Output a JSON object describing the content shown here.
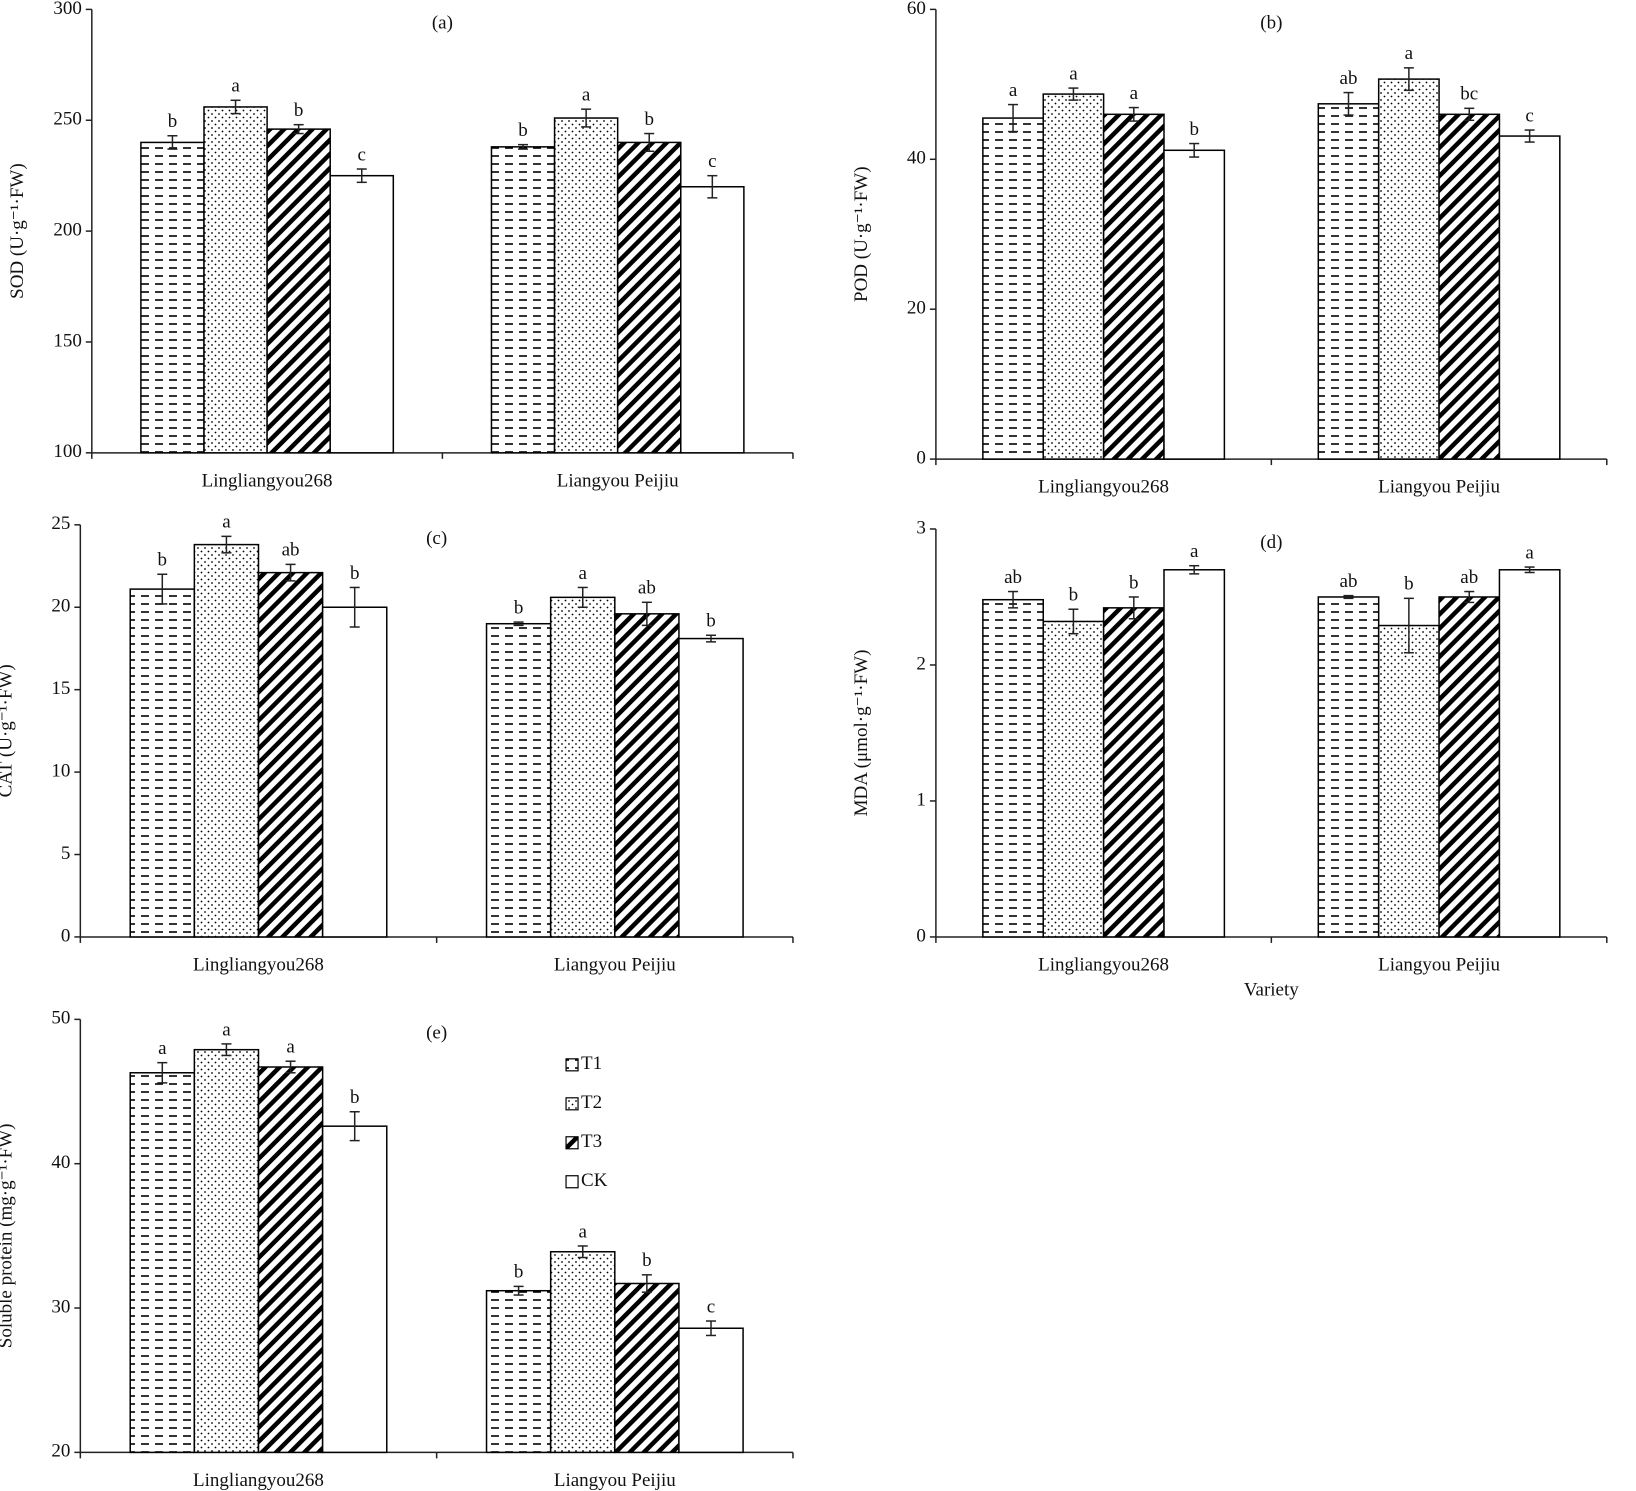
{
  "chart_data": [
    {
      "type": "bar",
      "title": "(a)",
      "y_label": "SOD (U·g⁻¹·FW)",
      "ylim": [
        100,
        300
      ],
      "yticks": [
        100,
        150,
        200,
        250,
        300
      ],
      "categories": [
        "Lingliangyou268",
        "Liangyou Peijiu"
      ],
      "series": [
        {
          "pattern": "dashes",
          "color": "#000000",
          "values": [
            240,
            238
          ],
          "errors": [
            3,
            1
          ],
          "letters": [
            "b",
            "b"
          ]
        },
        {
          "pattern": "dots",
          "color": "#000000",
          "values": [
            256,
            251
          ],
          "errors": [
            3,
            4
          ],
          "letters": [
            "a",
            "a"
          ]
        },
        {
          "pattern": "diagonal",
          "color": "#000000",
          "values": [
            246,
            240
          ],
          "errors": [
            2,
            4
          ],
          "letters": [
            "b",
            "b"
          ]
        },
        {
          "pattern": "none",
          "color": "#000000",
          "values": [
            225,
            220
          ],
          "errors": [
            3,
            5
          ],
          "letters": [
            "c",
            "c"
          ]
        }
      ]
    },
    {
      "type": "bar",
      "title": "(b)",
      "y_label": "POD (U·g⁻¹·FW)",
      "ylim": [
        0,
        60
      ],
      "yticks": [
        0,
        20,
        40,
        60
      ],
      "categories": [
        "Lingliangyou268",
        "Liangyou Peijiu"
      ],
      "series": [
        {
          "pattern": "dashes",
          "color": "#000000",
          "values": [
            45.5,
            47.4
          ],
          "errors": [
            1.8,
            1.5
          ],
          "letters": [
            "a",
            "ab"
          ]
        },
        {
          "pattern": "dots",
          "color": "#000000",
          "values": [
            48.7,
            50.7
          ],
          "errors": [
            0.8,
            1.5
          ],
          "letters": [
            "a",
            "a"
          ]
        },
        {
          "pattern": "diagonal",
          "color": "#000000",
          "values": [
            46,
            46
          ],
          "errors": [
            0.9,
            0.8
          ],
          "letters": [
            "a",
            "bc"
          ]
        },
        {
          "pattern": "none",
          "color": "#000000",
          "values": [
            41.2,
            43.1
          ],
          "errors": [
            0.9,
            0.8
          ],
          "letters": [
            "b",
            "c"
          ]
        }
      ]
    },
    {
      "type": "bar",
      "title": "(c)",
      "y_label": "CAT (U·g⁻¹·FW)",
      "ylim": [
        0,
        25
      ],
      "yticks": [
        0,
        5,
        10,
        15,
        20,
        25
      ],
      "categories": [
        "Lingliangyou268",
        "Liangyou Peijiu"
      ],
      "series": [
        {
          "pattern": "dashes",
          "color": "#000000",
          "values": [
            21.1,
            19
          ],
          "errors": [
            0.9,
            0.1
          ],
          "letters": [
            "b",
            "b"
          ]
        },
        {
          "pattern": "dots",
          "color": "#000000",
          "values": [
            23.8,
            20.6
          ],
          "errors": [
            0.5,
            0.6
          ],
          "letters": [
            "a",
            "a"
          ]
        },
        {
          "pattern": "diagonal",
          "color": "#000000",
          "values": [
            22.1,
            19.6
          ],
          "errors": [
            0.5,
            0.7
          ],
          "letters": [
            "ab",
            "ab"
          ]
        },
        {
          "pattern": "none",
          "color": "#000000",
          "values": [
            20,
            18.1
          ],
          "errors": [
            1.2,
            0.2
          ],
          "letters": [
            "b",
            "b"
          ]
        }
      ]
    },
    {
      "type": "bar",
      "title": "(d)",
      "y_label": "MDA  (μmol·g⁻¹·FW)",
      "x_label": "Variety",
      "ylim": [
        0,
        3
      ],
      "yticks": [
        0,
        1,
        2,
        3
      ],
      "categories": [
        "Lingliangyou268",
        "Liangyou Peijiu"
      ],
      "series": [
        {
          "pattern": "dashes",
          "color": "#000000",
          "values": [
            2.48,
            2.5
          ],
          "errors": [
            0.06,
            0.01
          ],
          "letters": [
            "ab",
            "ab"
          ]
        },
        {
          "pattern": "dots",
          "color": "#000000",
          "values": [
            2.32,
            2.29
          ],
          "errors": [
            0.09,
            0.2
          ],
          "letters": [
            "b",
            "b"
          ]
        },
        {
          "pattern": "diagonal",
          "color": "#000000",
          "values": [
            2.42,
            2.5
          ],
          "errors": [
            0.08,
            0.04
          ],
          "letters": [
            "b",
            "ab"
          ]
        },
        {
          "pattern": "none",
          "color": "#000000",
          "values": [
            2.7,
            2.7
          ],
          "errors": [
            0.03,
            0.02
          ],
          "letters": [
            "a",
            "a"
          ]
        }
      ]
    },
    {
      "type": "bar",
      "title": "(e)",
      "y_label": "Soluble protein (mg·g⁻¹·FW)",
      "ylim": [
        20,
        50
      ],
      "yticks": [
        20,
        30,
        40,
        50
      ],
      "categories": [
        "Lingliangyou268",
        "Liangyou Peijiu"
      ],
      "legend": "upper center",
      "series": [
        {
          "name": "T1",
          "pattern": "dashes",
          "color": "#000000",
          "values": [
            46.3,
            31.2
          ],
          "errors": [
            0.7,
            0.3
          ],
          "letters": [
            "a",
            "b"
          ]
        },
        {
          "name": "T2",
          "pattern": "dots",
          "color": "#000000",
          "values": [
            47.9,
            33.9
          ],
          "errors": [
            0.4,
            0.4
          ],
          "letters": [
            "a",
            "a"
          ]
        },
        {
          "name": "T3",
          "pattern": "diagonal",
          "color": "#000000",
          "values": [
            46.7,
            31.7
          ],
          "errors": [
            0.4,
            0.6
          ],
          "letters": [
            "a",
            "b"
          ]
        },
        {
          "name": "CK",
          "pattern": "none",
          "color": "#000000",
          "values": [
            42.6,
            28.6
          ],
          "errors": [
            1.0,
            0.5
          ],
          "letters": [
            "b",
            "c"
          ]
        }
      ]
    }
  ]
}
